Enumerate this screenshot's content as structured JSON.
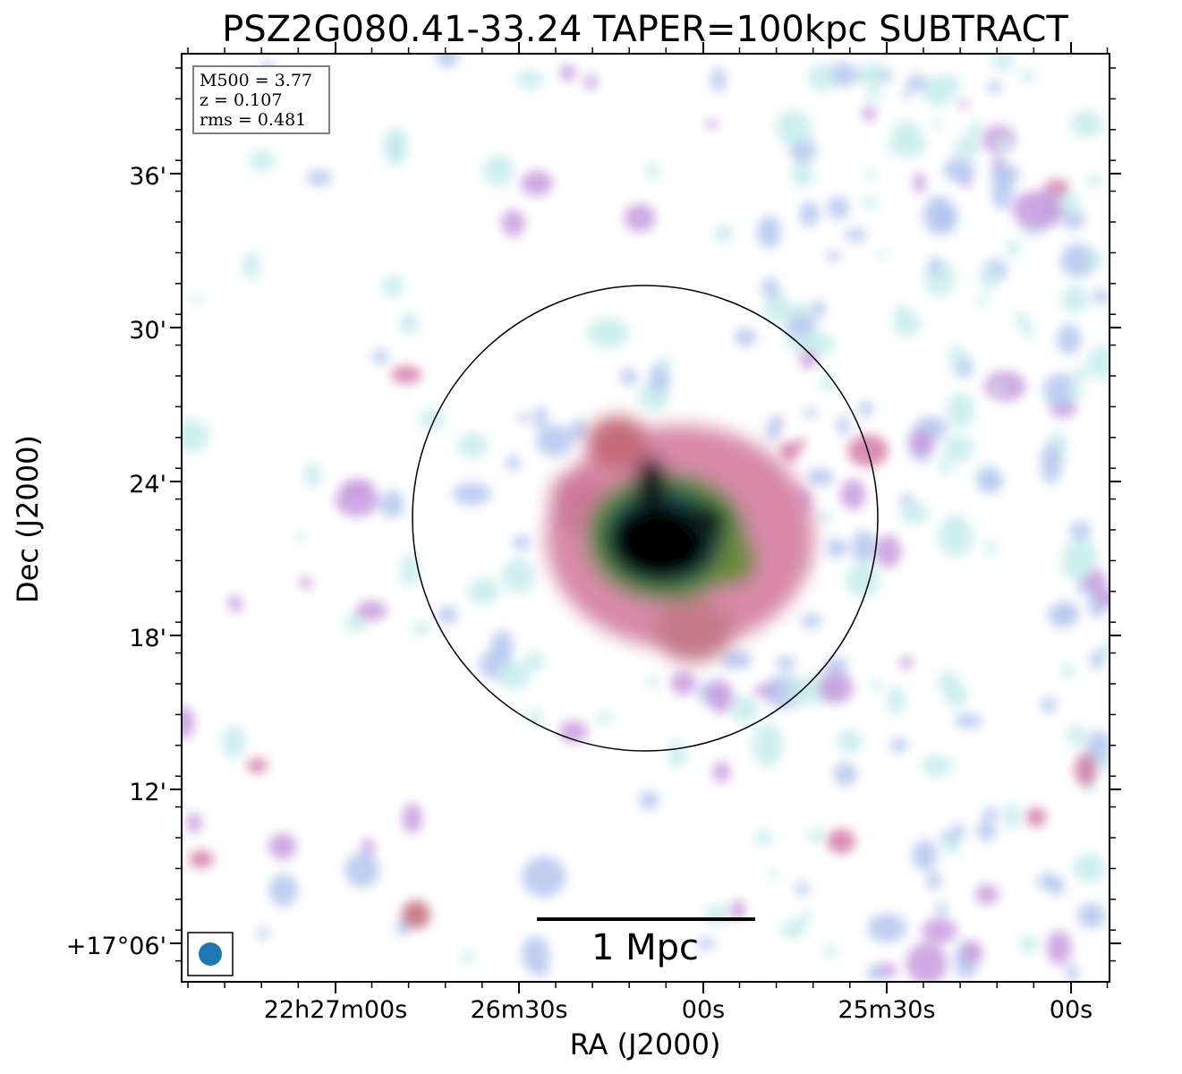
{
  "chart_data": {
    "type": "heatmap",
    "title": "PSZ2G080.41-33.24 TAPER=100kpc SUBTRACT",
    "xlabel": "RA (J2000)",
    "ylabel": "Dec (J2000)",
    "x_ticks": [
      "22h27m00s",
      "26m30s",
      "00s",
      "25m30s",
      "00s"
    ],
    "y_ticks": [
      "36'",
      "30'",
      "24'",
      "18'",
      "12'",
      "+17°06'"
    ],
    "info_lines": [
      "M500 = 3.77",
      "z = 0.107",
      "rms = 0.481"
    ],
    "scalebar_label": "1 Mpc",
    "colormap": [
      "#ffffff",
      "#c8ecec",
      "#b4c6ee",
      "#c89ade",
      "#d47aa8",
      "#c46a78",
      "#6a8a3a",
      "#1e4a4a",
      "#000000"
    ],
    "beam_color": "#1f77b4"
  }
}
